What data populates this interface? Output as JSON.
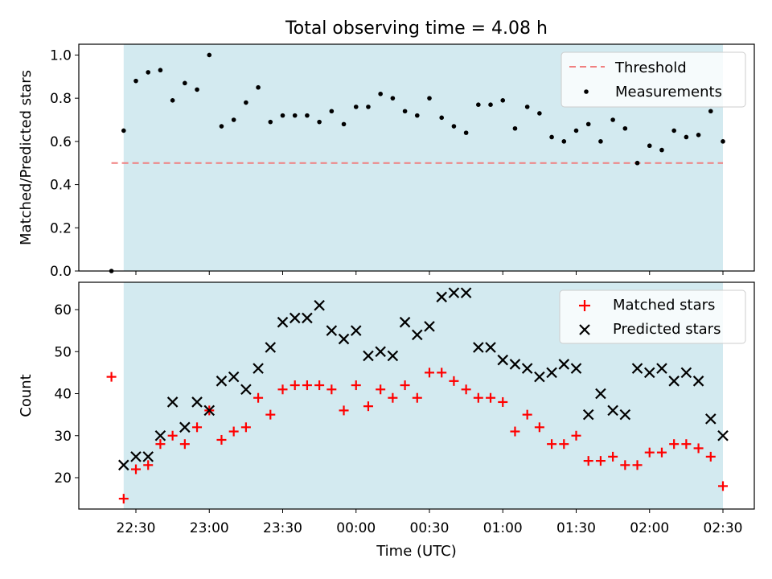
{
  "chart_data": [
    {
      "type": "scatter",
      "title": "Total observing time = 4.08 h",
      "xlabel": "",
      "ylabel": "Matched/Predicted stars",
      "ylim": [
        0,
        1.05
      ],
      "yticks": [
        "0.0",
        "0.2",
        "0.4",
        "0.6",
        "0.8",
        "1.0"
      ],
      "threshold": {
        "name": "Threshold",
        "value": 0.5,
        "xrange": [
          "22:20",
          "02:30"
        ],
        "color": "#f08080"
      },
      "shaded_interval": {
        "x": [
          "22:25",
          "02:30"
        ],
        "color": "#d3eaf0"
      },
      "legend_position": "top-right",
      "series": [
        {
          "name": "Measurements",
          "color": "#000000",
          "x": [
            "22:20",
            "22:25",
            "22:30",
            "22:35",
            "22:40",
            "22:45",
            "22:50",
            "22:55",
            "23:00",
            "23:05",
            "23:10",
            "23:15",
            "23:20",
            "23:25",
            "23:30",
            "23:35",
            "23:40",
            "23:45",
            "23:50",
            "23:55",
            "00:00",
            "00:05",
            "00:10",
            "00:15",
            "00:20",
            "00:25",
            "00:30",
            "00:35",
            "00:40",
            "00:45",
            "00:50",
            "00:55",
            "01:00",
            "01:05",
            "01:10",
            "01:15",
            "01:20",
            "01:25",
            "01:30",
            "01:35",
            "01:40",
            "01:45",
            "01:50",
            "01:55",
            "02:00",
            "02:05",
            "02:10",
            "02:15",
            "02:20",
            "02:25",
            "02:30"
          ],
          "y": [
            0.0,
            0.65,
            0.88,
            0.92,
            0.93,
            0.79,
            0.87,
            0.84,
            1.0,
            0.67,
            0.7,
            0.78,
            0.85,
            0.69,
            0.72,
            0.72,
            0.72,
            0.69,
            0.74,
            0.68,
            0.76,
            0.76,
            0.82,
            0.8,
            0.74,
            0.72,
            0.8,
            0.71,
            0.67,
            0.64,
            0.77,
            0.77,
            0.79,
            0.66,
            0.76,
            0.73,
            0.62,
            0.6,
            0.65,
            0.68,
            0.6,
            0.7,
            0.66,
            0.5,
            0.58,
            0.56,
            0.65,
            0.62,
            0.63,
            0.74,
            0.6
          ]
        }
      ]
    },
    {
      "type": "scatter",
      "title": "",
      "xlabel": "Time (UTC)",
      "ylabel": "Count",
      "ylim": [
        12.5,
        66
      ],
      "yticks": [
        "20",
        "30",
        "40",
        "50",
        "60"
      ],
      "xticks": [
        "22:30",
        "23:00",
        "23:30",
        "00:00",
        "00:30",
        "01:00",
        "01:30",
        "02:00",
        "02:30"
      ],
      "shaded_interval": {
        "x": [
          "22:25",
          "02:30"
        ],
        "color": "#d3eaf0"
      },
      "legend_position": "top-right",
      "series": [
        {
          "name": "Matched stars",
          "marker": "plus",
          "color": "#ff0000",
          "x": [
            "22:20",
            "22:25",
            "22:30",
            "22:35",
            "22:40",
            "22:45",
            "22:50",
            "22:55",
            "23:00",
            "23:05",
            "23:10",
            "23:15",
            "23:20",
            "23:25",
            "23:30",
            "23:35",
            "23:40",
            "23:45",
            "23:50",
            "23:55",
            "00:00",
            "00:05",
            "00:10",
            "00:15",
            "00:20",
            "00:25",
            "00:30",
            "00:35",
            "00:40",
            "00:45",
            "00:50",
            "00:55",
            "01:00",
            "01:05",
            "01:10",
            "01:15",
            "01:20",
            "01:25",
            "01:30",
            "01:35",
            "01:40",
            "01:45",
            "01:50",
            "01:55",
            "02:00",
            "02:05",
            "02:10",
            "02:15",
            "02:20",
            "02:25",
            "02:30"
          ],
          "y": [
            44,
            15,
            22,
            23,
            28,
            30,
            28,
            32,
            36,
            29,
            31,
            32,
            39,
            35,
            41,
            42,
            42,
            42,
            41,
            36,
            42,
            37,
            41,
            39,
            42,
            39,
            45,
            45,
            43,
            41,
            39,
            39,
            38,
            31,
            35,
            32,
            28,
            28,
            30,
            24,
            24,
            25,
            23,
            23,
            26,
            26,
            28,
            28,
            27,
            25,
            18
          ]
        },
        {
          "name": "Predicted stars",
          "marker": "x",
          "color": "#000000",
          "x": [
            "22:25",
            "22:30",
            "22:35",
            "22:40",
            "22:45",
            "22:50",
            "22:55",
            "23:00",
            "23:05",
            "23:10",
            "23:15",
            "23:20",
            "23:25",
            "23:30",
            "23:35",
            "23:40",
            "23:45",
            "23:50",
            "23:55",
            "00:00",
            "00:05",
            "00:10",
            "00:15",
            "00:20",
            "00:25",
            "00:30",
            "00:35",
            "00:40",
            "00:45",
            "00:50",
            "00:55",
            "01:00",
            "01:05",
            "01:10",
            "01:15",
            "01:20",
            "01:25",
            "01:30",
            "01:35",
            "01:40",
            "01:45",
            "01:50",
            "01:55",
            "02:00",
            "02:05",
            "02:10",
            "02:15",
            "02:20",
            "02:25",
            "02:30"
          ],
          "y": [
            23,
            25,
            25,
            30,
            38,
            32,
            38,
            36,
            43,
            44,
            41,
            46,
            51,
            57,
            58,
            58,
            61,
            55,
            53,
            55,
            49,
            50,
            49,
            57,
            54,
            56,
            63,
            64,
            64,
            51,
            51,
            48,
            47,
            46,
            44,
            45,
            47,
            46,
            35,
            40,
            36,
            35,
            46,
            45,
            46,
            43,
            45,
            43,
            34,
            30
          ]
        }
      ]
    }
  ]
}
